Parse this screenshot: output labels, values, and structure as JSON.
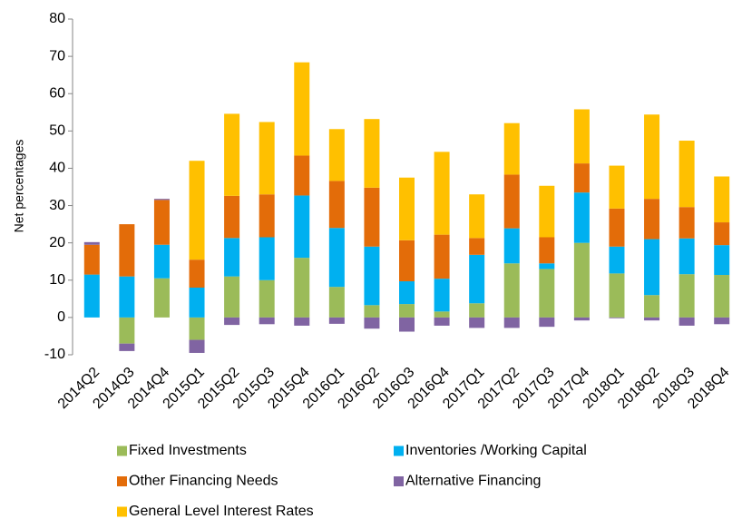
{
  "chart_data": {
    "type": "stacked_bar",
    "y_label": "Net percentages",
    "categories": [
      "2014Q2",
      "2014Q3",
      "2014Q4",
      "2015Q1",
      "2015Q2",
      "2015Q3",
      "2015Q4",
      "2016Q1",
      "2016Q2",
      "2016Q3",
      "2016Q4",
      "2017Q1",
      "2017Q2",
      "2017Q3",
      "2017Q4",
      "2018Q1",
      "2018Q2",
      "2018Q3",
      "2018Q4"
    ],
    "series": [
      {
        "name": "Fixed Investments",
        "color": "#9bbb59",
        "values": [
          0,
          -7,
          10.5,
          -6,
          11,
          10,
          16,
          8.2,
          3.3,
          3.6,
          1.6,
          3.8,
          14.5,
          13,
          20,
          11.8,
          6,
          11.6,
          11.4
        ]
      },
      {
        "name": "Inventories /Working Capital",
        "color": "#00b0f0",
        "values": [
          11.5,
          11,
          9,
          8,
          10.3,
          11.5,
          16.7,
          15.8,
          15.7,
          6.1,
          8.8,
          13,
          9.4,
          1.5,
          13.5,
          7.2,
          15,
          9.6,
          8
        ]
      },
      {
        "name": "Other Financing Needs",
        "color": "#e36c09",
        "values": [
          8,
          14,
          12,
          7.5,
          11.3,
          11.5,
          10.7,
          12.6,
          15.8,
          11,
          11.8,
          4.5,
          14.4,
          7,
          7.8,
          10.2,
          10.8,
          8.4,
          6.1
        ]
      },
      {
        "name": "Alternative Financing",
        "color": "#8064a2",
        "values": [
          0.7,
          -2,
          0.3,
          -3.5,
          -2,
          -1.8,
          -2.2,
          -1.7,
          -3,
          -3.8,
          -2.2,
          -2.8,
          -2.8,
          -2.5,
          -0.8,
          -0.2,
          -0.8,
          -2.2,
          -1.8
        ]
      },
      {
        "name": "General Level Interest Rates",
        "color": "#ffc000",
        "values": [
          0,
          0,
          0,
          26.5,
          22,
          19.4,
          25,
          13.9,
          18.4,
          16.8,
          22.2,
          11.7,
          13.8,
          13.8,
          14.5,
          11.5,
          22.6,
          17.8,
          12.3
        ]
      }
    ],
    "ylim": [
      -10,
      80
    ],
    "yticks": [
      -10,
      0,
      10,
      20,
      30,
      40,
      50,
      60,
      70,
      80
    ],
    "grid": false
  }
}
